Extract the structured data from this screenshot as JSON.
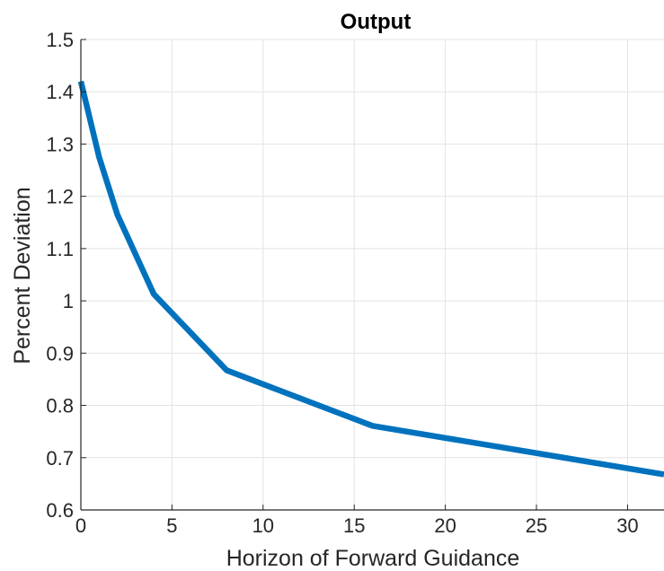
{
  "chart_data": {
    "type": "line",
    "title": "Output",
    "xlabel": "Horizon of Forward Guidance",
    "ylabel": "Percent Deviation",
    "xlim": [
      0,
      32
    ],
    "ylim": [
      0.6,
      1.5
    ],
    "xticks": [
      0,
      5,
      10,
      15,
      20,
      25,
      30
    ],
    "yticks": [
      0.6,
      0.7,
      0.8,
      0.9,
      1,
      1.1,
      1.2,
      1.3,
      1.4,
      1.5
    ],
    "xtick_labels": [
      "0",
      "5",
      "10",
      "15",
      "20",
      "25",
      "30"
    ],
    "ytick_labels": [
      "0.6",
      "0.7",
      "0.8",
      "0.9",
      "1",
      "1.1",
      "1.2",
      "1.3",
      "1.4",
      "1.5"
    ],
    "grid": true,
    "series": [
      {
        "color": "#0072BD",
        "x": [
          0,
          1,
          2,
          4,
          8,
          16,
          32
        ],
        "y": [
          1.42,
          1.275,
          1.165,
          1.013,
          0.867,
          0.761,
          0.668
        ]
      }
    ]
  }
}
